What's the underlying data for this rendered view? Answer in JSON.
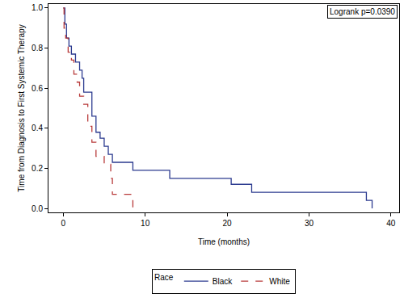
{
  "chart_data": {
    "type": "line",
    "xlabel": "Time (months)",
    "ylabel": "Time from Diagnosis to First Systemic Therapy",
    "legend_title": "Race",
    "legend": "bottom",
    "grid": false,
    "annotations": [
      "Logrank p=0.0390"
    ],
    "xlim": [
      -1.8,
      41
    ],
    "xticks": [
      0,
      10,
      20,
      30,
      40
    ],
    "ylim": [
      -0.02,
      1.02
    ],
    "yticks": [
      {
        "value": 0,
        "label": "0.0"
      },
      0.2,
      0.4,
      0.6,
      0.8,
      {
        "value": 1,
        "label": "1.0"
      }
    ],
    "series": [
      {
        "name": "Black",
        "color": "#2b3a8f",
        "line_style": "solid",
        "x": [
          0,
          0.2,
          0.4,
          0.7,
          1.0,
          1.5,
          2.0,
          2.3,
          2.5,
          3.5,
          4.0,
          4.5,
          5.0,
          5.5,
          6.0,
          8.5,
          13,
          20.5,
          23,
          37,
          37.7
        ],
        "values": [
          1.0,
          0.92,
          0.85,
          0.81,
          0.77,
          0.73,
          0.69,
          0.65,
          0.58,
          0.46,
          0.38,
          0.35,
          0.31,
          0.27,
          0.23,
          0.19,
          0.15,
          0.12,
          0.08,
          0.04,
          0.0
        ]
      },
      {
        "name": "White",
        "color": "#b83a3a",
        "line_style": "dashed",
        "x": [
          0,
          0.1,
          0.3,
          0.6,
          1.0,
          1.3,
          1.7,
          2.0,
          2.5,
          3.0,
          3.5,
          4.0,
          5.0,
          5.8,
          6.0,
          8.5
        ],
        "values": [
          1.0,
          0.9,
          0.85,
          0.78,
          0.74,
          0.67,
          0.63,
          0.56,
          0.52,
          0.41,
          0.33,
          0.26,
          0.22,
          0.15,
          0.07,
          0.0
        ]
      }
    ]
  }
}
